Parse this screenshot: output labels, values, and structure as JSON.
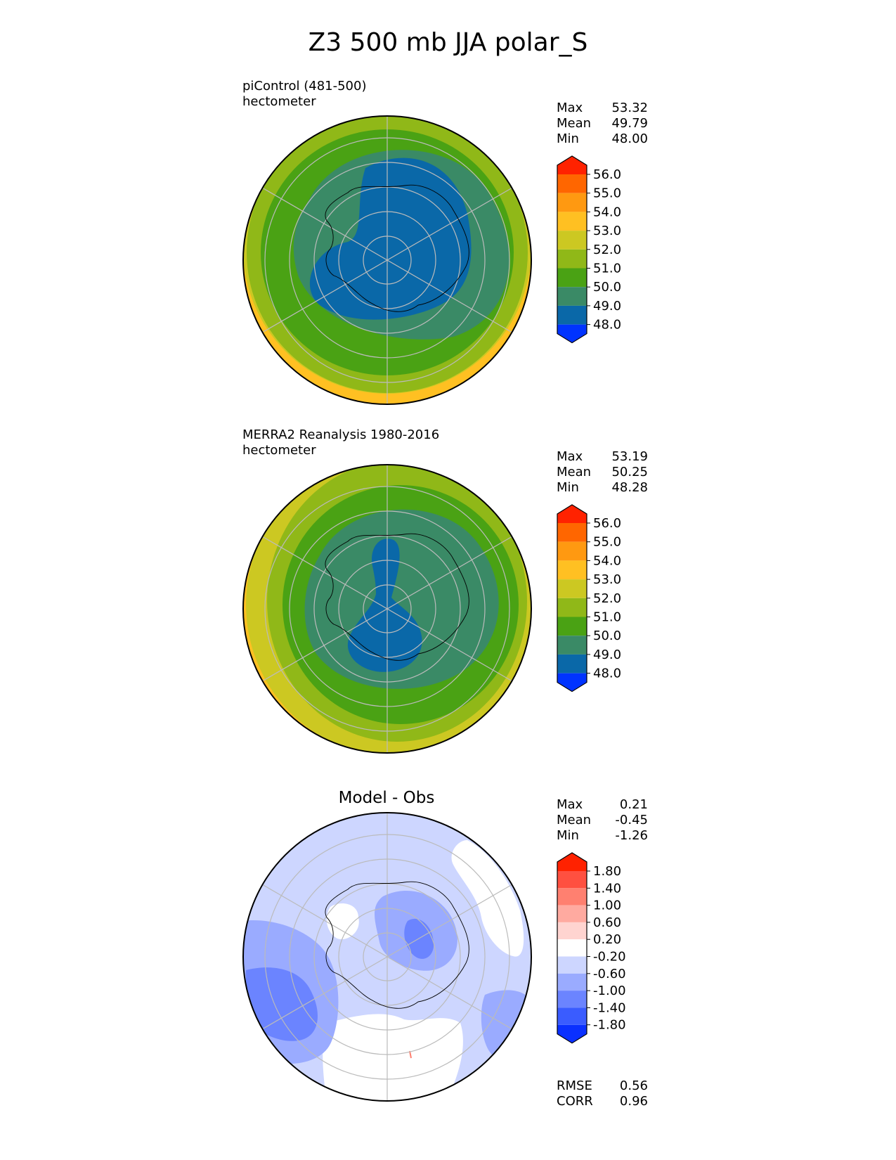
{
  "title": "Z3 500 mb JJA polar_S",
  "panels": [
    {
      "label1": "piControl (481-500)",
      "label2": "hectometer",
      "stats": [
        {
          "name": "Max",
          "value": "53.32"
        },
        {
          "name": "Mean",
          "value": "49.79"
        },
        {
          "name": "Min",
          "value": "48.00"
        }
      ]
    },
    {
      "label1": "MERRA2 Reanalysis 1980-2016",
      "label2": "hectometer",
      "stats": [
        {
          "name": "Max",
          "value": "53.19"
        },
        {
          "name": "Mean",
          "value": "50.25"
        },
        {
          "name": "Min",
          "value": "48.28"
        }
      ]
    },
    {
      "title": "Model - Obs",
      "stats": [
        {
          "name": "Max",
          "value": "0.21"
        },
        {
          "name": "Mean",
          "value": "-0.45"
        },
        {
          "name": "Min",
          "value": "-1.26"
        }
      ],
      "metrics": [
        {
          "name": "RMSE",
          "value": "0.56"
        },
        {
          "name": "CORR",
          "value": "0.96"
        }
      ]
    }
  ],
  "chart_data": [
    {
      "type": "heatmap",
      "title": "piControl (481-500)",
      "units": "hectometer",
      "projection": "south polar stereographic",
      "colorbar": {
        "ticks": [
          "56.0",
          "55.0",
          "54.0",
          "53.0",
          "52.0",
          "51.0",
          "50.0",
          "49.0",
          "48.0"
        ],
        "colors": [
          "#ff2200",
          "#ff6600",
          "#ff9911",
          "#ffc022",
          "#ccc822",
          "#90b818",
          "#4aa214",
          "#3a8a66",
          "#0a68a8",
          "#0033ff"
        ],
        "extend": "both"
      },
      "stats": {
        "max": 53.32,
        "mean": 49.79,
        "min": 48.0
      }
    },
    {
      "type": "heatmap",
      "title": "MERRA2 Reanalysis 1980-2016",
      "units": "hectometer",
      "projection": "south polar stereographic",
      "colorbar": {
        "ticks": [
          "56.0",
          "55.0",
          "54.0",
          "53.0",
          "52.0",
          "51.0",
          "50.0",
          "49.0",
          "48.0"
        ],
        "colors": [
          "#ff2200",
          "#ff6600",
          "#ff9911",
          "#ffc022",
          "#ccc822",
          "#90b818",
          "#4aa214",
          "#3a8a66",
          "#0a68a8",
          "#0033ff"
        ],
        "extend": "both"
      },
      "stats": {
        "max": 53.19,
        "mean": 50.25,
        "min": 48.28
      }
    },
    {
      "type": "heatmap",
      "title": "Model - Obs",
      "projection": "south polar stereographic",
      "colorbar": {
        "ticks": [
          "1.80",
          "1.40",
          "1.00",
          "0.60",
          "0.20",
          "-0.20",
          "-0.60",
          "-1.00",
          "-1.40",
          "-1.80"
        ],
        "colors": [
          "#ff2200",
          "#ff5040",
          "#ff8070",
          "#ffaaa0",
          "#ffd4d0",
          "#ffffff",
          "#cdd6ff",
          "#9aabff",
          "#6b84ff",
          "#3a5cff",
          "#0a30ff"
        ],
        "extend": "both"
      },
      "stats": {
        "max": 0.21,
        "mean": -0.45,
        "min": -1.26,
        "rmse": 0.56,
        "corr": 0.96
      }
    }
  ]
}
